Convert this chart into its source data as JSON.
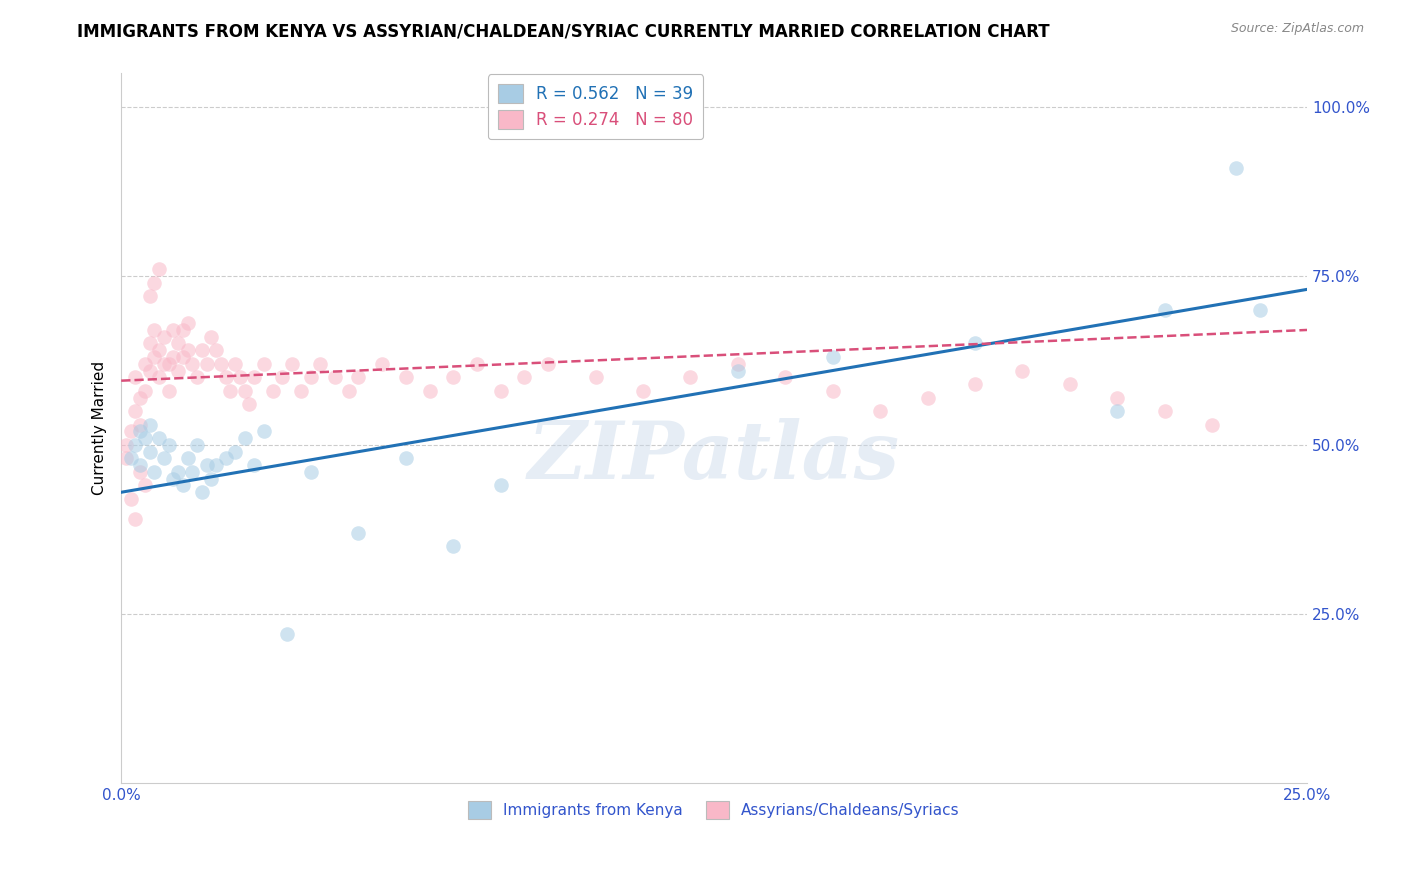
{
  "title": "IMMIGRANTS FROM KENYA VS ASSYRIAN/CHALDEAN/SYRIAC CURRENTLY MARRIED CORRELATION CHART",
  "source": "Source: ZipAtlas.com",
  "ylabel": "Currently Married",
  "x_tick_labels": [
    "0.0%",
    "25.0%"
  ],
  "y_tick_labels": [
    "25.0%",
    "50.0%",
    "75.0%",
    "100.0%"
  ],
  "xlim": [
    0.0,
    0.25
  ],
  "ylim": [
    0.0,
    1.05
  ],
  "ytick_vals": [
    0.25,
    0.5,
    0.75,
    1.0
  ],
  "xtick_vals": [
    0.0,
    0.25
  ],
  "legend_entries": [
    {
      "label": "R = 0.562   N = 39",
      "color": "#a8cce4"
    },
    {
      "label": "R = 0.274   N = 80",
      "color": "#f9b8c8"
    }
  ],
  "legend_labels_bottom": [
    "Immigrants from Kenya",
    "Assyrians/Chaldeans/Syriacs"
  ],
  "kenya_scatter_x": [
    0.002,
    0.003,
    0.004,
    0.004,
    0.005,
    0.006,
    0.006,
    0.007,
    0.008,
    0.009,
    0.01,
    0.011,
    0.012,
    0.013,
    0.014,
    0.015,
    0.016,
    0.017,
    0.018,
    0.019,
    0.02,
    0.022,
    0.024,
    0.026,
    0.028,
    0.03,
    0.035,
    0.04,
    0.05,
    0.06,
    0.07,
    0.08,
    0.13,
    0.15,
    0.18,
    0.21,
    0.22,
    0.235,
    0.24
  ],
  "kenya_scatter_y": [
    0.48,
    0.5,
    0.52,
    0.47,
    0.51,
    0.49,
    0.53,
    0.46,
    0.51,
    0.48,
    0.5,
    0.45,
    0.46,
    0.44,
    0.48,
    0.46,
    0.5,
    0.43,
    0.47,
    0.45,
    0.47,
    0.48,
    0.49,
    0.51,
    0.47,
    0.52,
    0.22,
    0.46,
    0.37,
    0.48,
    0.35,
    0.44,
    0.61,
    0.63,
    0.65,
    0.55,
    0.7,
    0.91,
    0.7
  ],
  "assyrian_scatter_x": [
    0.001,
    0.002,
    0.003,
    0.003,
    0.004,
    0.004,
    0.005,
    0.005,
    0.006,
    0.006,
    0.007,
    0.007,
    0.008,
    0.008,
    0.009,
    0.009,
    0.01,
    0.01,
    0.011,
    0.011,
    0.012,
    0.012,
    0.013,
    0.013,
    0.014,
    0.014,
    0.015,
    0.016,
    0.017,
    0.018,
    0.019,
    0.02,
    0.021,
    0.022,
    0.023,
    0.024,
    0.025,
    0.026,
    0.027,
    0.028,
    0.03,
    0.032,
    0.034,
    0.036,
    0.038,
    0.04,
    0.042,
    0.045,
    0.048,
    0.05,
    0.055,
    0.06,
    0.065,
    0.07,
    0.075,
    0.08,
    0.085,
    0.09,
    0.1,
    0.11,
    0.12,
    0.13,
    0.14,
    0.15,
    0.16,
    0.17,
    0.18,
    0.19,
    0.2,
    0.21,
    0.22,
    0.23,
    0.001,
    0.002,
    0.003,
    0.004,
    0.005,
    0.006,
    0.007,
    0.008
  ],
  "assyrian_scatter_y": [
    0.5,
    0.52,
    0.55,
    0.6,
    0.53,
    0.57,
    0.58,
    0.62,
    0.61,
    0.65,
    0.63,
    0.67,
    0.6,
    0.64,
    0.62,
    0.66,
    0.58,
    0.62,
    0.63,
    0.67,
    0.61,
    0.65,
    0.63,
    0.67,
    0.64,
    0.68,
    0.62,
    0.6,
    0.64,
    0.62,
    0.66,
    0.64,
    0.62,
    0.6,
    0.58,
    0.62,
    0.6,
    0.58,
    0.56,
    0.6,
    0.62,
    0.58,
    0.6,
    0.62,
    0.58,
    0.6,
    0.62,
    0.6,
    0.58,
    0.6,
    0.62,
    0.6,
    0.58,
    0.6,
    0.62,
    0.58,
    0.6,
    0.62,
    0.6,
    0.58,
    0.6,
    0.62,
    0.6,
    0.58,
    0.55,
    0.57,
    0.59,
    0.61,
    0.59,
    0.57,
    0.55,
    0.53,
    0.48,
    0.42,
    0.39,
    0.46,
    0.44,
    0.72,
    0.74,
    0.76
  ],
  "kenya_line_x": [
    0.0,
    0.25
  ],
  "kenya_line_y": [
    0.43,
    0.73
  ],
  "assyrian_line_x": [
    0.0,
    0.25
  ],
  "assyrian_line_y": [
    0.595,
    0.67
  ],
  "scatter_color_kenya": "#a8cce4",
  "scatter_color_assyrian": "#f9b8c8",
  "line_color_kenya": "#2171b5",
  "line_color_assyrian": "#d94f7a",
  "watermark": "ZIPatlas",
  "title_fontsize": 12,
  "axis_label_color": "#3355cc",
  "background_color": "#ffffff"
}
